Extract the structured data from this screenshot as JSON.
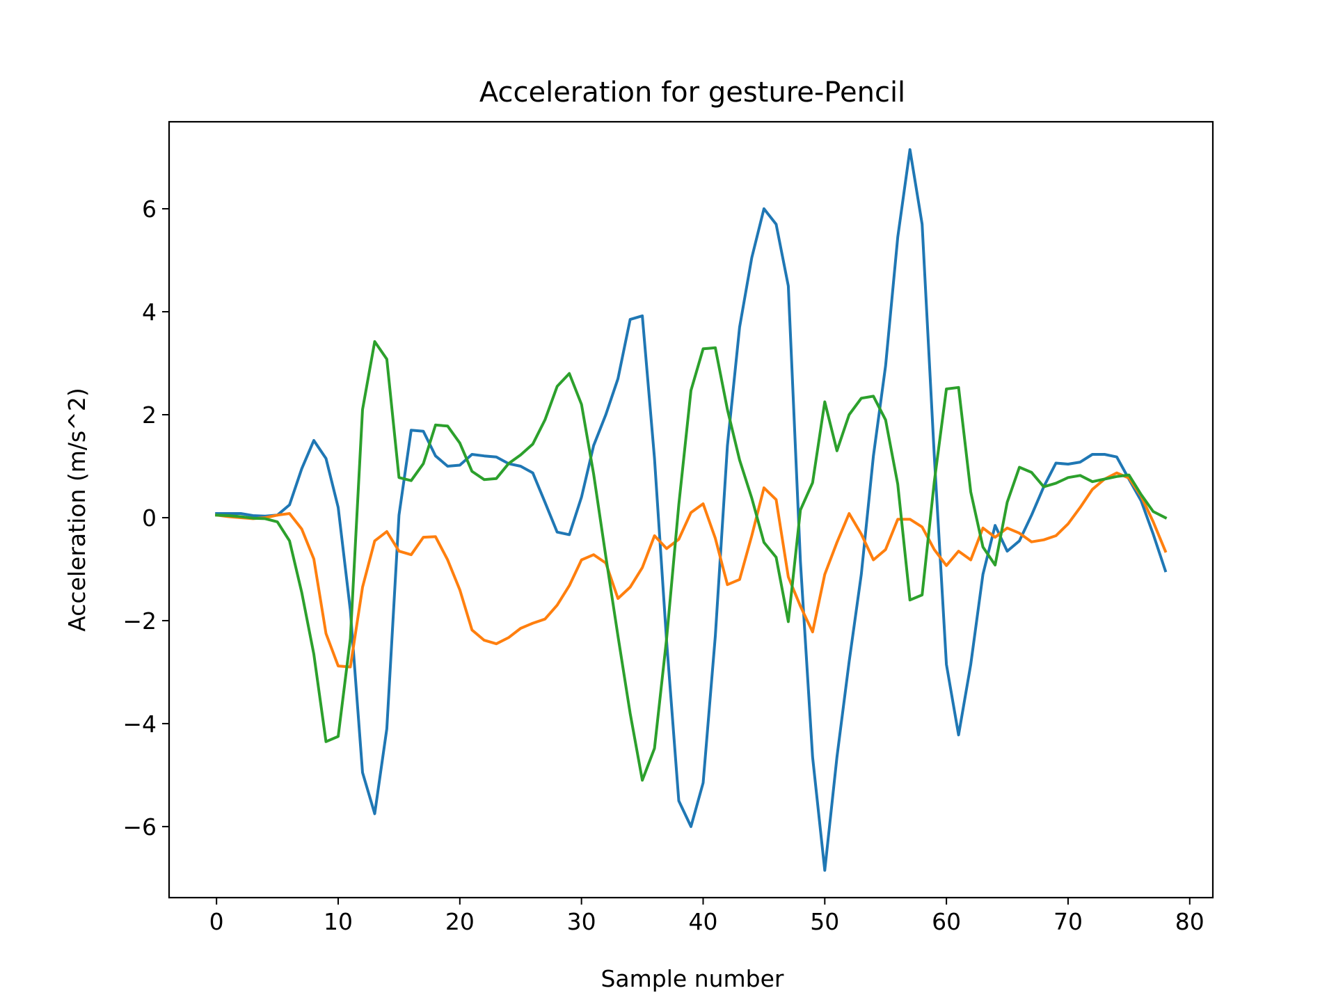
{
  "chart_data": {
    "type": "line",
    "title": "Acceleration for gesture-Pencil",
    "xlabel": "Sample number",
    "ylabel": "Acceleration (m/s^2)",
    "xlim": [
      -3.9,
      81.9
    ],
    "ylim": [
      -7.38,
      7.69
    ],
    "grid": false,
    "x_ticks": [
      0,
      10,
      20,
      30,
      40,
      50,
      60,
      70,
      80
    ],
    "x_tick_labels": [
      "0",
      "10",
      "20",
      "30",
      "40",
      "50",
      "60",
      "70",
      "80"
    ],
    "y_ticks": [
      -6,
      -4,
      -2,
      0,
      2,
      4,
      6
    ],
    "y_tick_labels": [
      "−6",
      "−4",
      "−2",
      "0",
      "2",
      "4",
      "6"
    ],
    "x": [
      0,
      1,
      2,
      3,
      4,
      5,
      6,
      7,
      8,
      9,
      10,
      11,
      12,
      13,
      14,
      15,
      16,
      17,
      18,
      19,
      20,
      21,
      22,
      23,
      24,
      25,
      26,
      27,
      28,
      29,
      30,
      31,
      32,
      33,
      34,
      35,
      36,
      37,
      38,
      39,
      40,
      41,
      42,
      43,
      44,
      45,
      46,
      47,
      48,
      49,
      50,
      51,
      52,
      53,
      54,
      55,
      56,
      57,
      58,
      59,
      60,
      61,
      62,
      63,
      64,
      65,
      66,
      67,
      68,
      69,
      70,
      71,
      72,
      73,
      74,
      75,
      76,
      77,
      78
    ],
    "series": [
      {
        "color": "#1f77b4",
        "values": [
          0.08,
          0.08,
          0.08,
          0.04,
          0.03,
          0.05,
          0.25,
          0.95,
          1.5,
          1.15,
          0.2,
          -1.8,
          -4.95,
          -5.75,
          -4.1,
          0.05,
          1.7,
          1.68,
          1.2,
          1.0,
          1.02,
          1.23,
          1.2,
          1.18,
          1.05,
          1.0,
          0.87,
          0.3,
          -0.28,
          -0.33,
          0.4,
          1.4,
          2.0,
          2.7,
          3.85,
          3.92,
          1.15,
          -2.4,
          -5.5,
          -6.0,
          -5.15,
          -2.3,
          1.4,
          3.7,
          5.05,
          6.0,
          5.7,
          4.5,
          -0.85,
          -4.65,
          -6.85,
          -4.65,
          -2.8,
          -1.1,
          1.2,
          2.95,
          5.45,
          7.15,
          5.7,
          1.2,
          -2.85,
          -4.22,
          -2.85,
          -1.1,
          -0.15,
          -0.65,
          -0.45,
          0.05,
          0.6,
          1.06,
          1.04,
          1.08,
          1.23,
          1.23,
          1.18,
          0.75,
          0.33,
          -0.32,
          -1.03
        ]
      },
      {
        "color": "#ff7f0e",
        "values": [
          0.05,
          0.02,
          0.0,
          -0.02,
          0.0,
          0.05,
          0.08,
          -0.22,
          -0.8,
          -2.25,
          -2.88,
          -2.9,
          -1.35,
          -0.45,
          -0.27,
          -0.65,
          -0.72,
          -0.38,
          -0.37,
          -0.82,
          -1.4,
          -2.18,
          -2.38,
          -2.45,
          -2.33,
          -2.15,
          -2.05,
          -1.97,
          -1.7,
          -1.32,
          -0.82,
          -0.72,
          -0.88,
          -1.57,
          -1.35,
          -0.97,
          -0.35,
          -0.6,
          -0.42,
          0.1,
          0.27,
          -0.4,
          -1.3,
          -1.2,
          -0.35,
          0.58,
          0.35,
          -1.15,
          -1.72,
          -2.22,
          -1.1,
          -0.48,
          0.08,
          -0.32,
          -0.82,
          -0.62,
          -0.03,
          -0.03,
          -0.18,
          -0.62,
          -0.93,
          -0.65,
          -0.82,
          -0.2,
          -0.38,
          -0.2,
          -0.3,
          -0.47,
          -0.43,
          -0.35,
          -0.12,
          0.2,
          0.55,
          0.75,
          0.87,
          0.77,
          0.42,
          -0.08,
          -0.65
        ]
      },
      {
        "color": "#2ca02c",
        "values": [
          0.05,
          0.04,
          0.02,
          -0.01,
          -0.02,
          -0.08,
          -0.45,
          -1.45,
          -2.65,
          -4.35,
          -4.25,
          -2.35,
          2.1,
          3.42,
          3.08,
          0.78,
          0.72,
          1.05,
          1.8,
          1.78,
          1.45,
          0.9,
          0.74,
          0.76,
          1.05,
          1.22,
          1.43,
          1.9,
          2.55,
          2.8,
          2.2,
          0.85,
          -0.75,
          -2.3,
          -3.8,
          -5.1,
          -4.48,
          -2.35,
          0.25,
          2.47,
          3.28,
          3.3,
          2.1,
          1.12,
          0.38,
          -0.48,
          -0.77,
          -2.02,
          0.15,
          0.68,
          2.25,
          1.3,
          2.0,
          2.32,
          2.36,
          1.9,
          0.65,
          -1.6,
          -1.5,
          0.7,
          2.5,
          2.53,
          0.5,
          -0.57,
          -0.92,
          0.3,
          0.98,
          0.88,
          0.6,
          0.67,
          0.78,
          0.82,
          0.7,
          0.75,
          0.8,
          0.83,
          0.45,
          0.12,
          0.0
        ]
      }
    ]
  }
}
